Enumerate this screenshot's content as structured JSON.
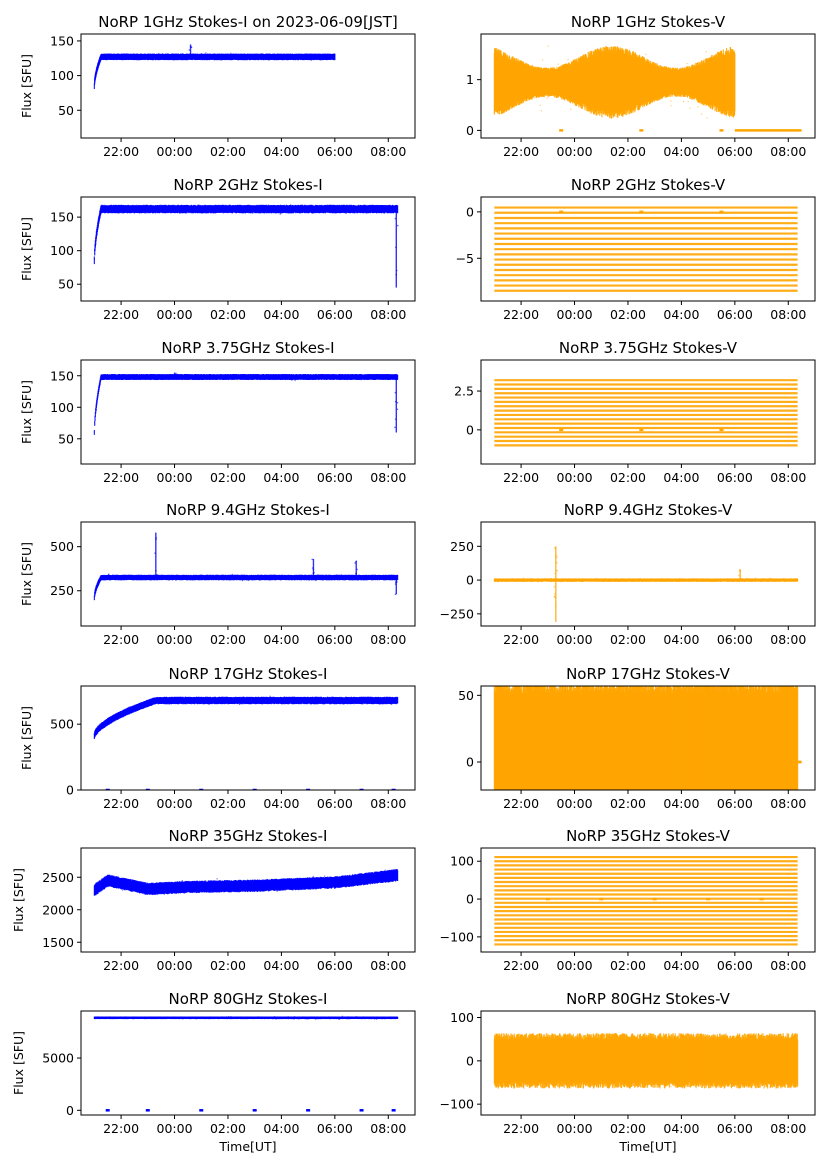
{
  "figure": {
    "type": "multi-panel-scatter",
    "xlabel": "Time[UT]"
  },
  "colors": {
    "stokes_i": "#0000ff",
    "stokes_v": "#ffa500",
    "axis": "#000000",
    "background": "#ffffff"
  },
  "chart_data": [
    {
      "type": "scatter",
      "title": "NoRP 1GHz Stokes-I on 2023-06-09[JST]",
      "xlabel": "",
      "ylabel": "Flux [SFU]",
      "xticks": [
        "22:00",
        "00:00",
        "02:00",
        "04:00",
        "06:00",
        "08:00"
      ],
      "xlim_hours": [
        20.5,
        33.0
      ],
      "yticks": [
        50,
        100,
        150
      ],
      "ylim": [
        10,
        160
      ],
      "series": {
        "name": "Stokes-I",
        "color": "#0000ff",
        "start_hour": 21.0,
        "end_hour": 30.0,
        "level": 127,
        "rise_from": 85,
        "noise": 3,
        "spikes": [
          {
            "hour": 24.6,
            "value": 145
          }
        ],
        "dropouts": []
      }
    },
    {
      "type": "scatter",
      "title": "NoRP 1GHz Stokes-V",
      "xlabel": "",
      "ylabel": "",
      "xticks": [
        "22:00",
        "00:00",
        "02:00",
        "04:00",
        "06:00",
        "08:00"
      ],
      "xlim_hours": [
        20.5,
        33.0
      ],
      "yticks": [
        0,
        1
      ],
      "ylim": [
        -0.15,
        1.9
      ],
      "series": {
        "name": "Stokes-V",
        "color": "#ffa500",
        "start_hour": 21.0,
        "end_hour": 30.0,
        "level": 0.95,
        "noise": 0.45,
        "tail": {
          "start_hour": 30.0,
          "end_hour": 32.5,
          "value": 0.0
        },
        "dropouts": [
          {
            "hour": 23.5,
            "value": 0.0
          },
          {
            "hour": 26.5,
            "value": 0.0
          },
          {
            "hour": 29.5,
            "value": 0.0
          }
        ]
      }
    },
    {
      "type": "scatter",
      "title": "NoRP 2GHz Stokes-I",
      "xlabel": "",
      "ylabel": "Flux [SFU]",
      "xticks": [
        "22:00",
        "00:00",
        "02:00",
        "04:00",
        "06:00",
        "08:00"
      ],
      "xlim_hours": [
        20.5,
        33.0
      ],
      "yticks": [
        50,
        100,
        150
      ],
      "ylim": [
        25,
        180
      ],
      "series": {
        "name": "Stokes-I",
        "color": "#0000ff",
        "start_hour": 21.0,
        "end_hour": 32.35,
        "level": 162,
        "rise_from": 85,
        "noise": 4,
        "spikes": [
          {
            "hour": 32.3,
            "value": 45
          }
        ],
        "dropouts": []
      }
    },
    {
      "type": "scatter",
      "title": "NoRP 2GHz Stokes-V",
      "xlabel": "",
      "ylabel": "",
      "xticks": [
        "22:00",
        "00:00",
        "02:00",
        "04:00",
        "06:00",
        "08:00"
      ],
      "xlim_hours": [
        20.5,
        33.0
      ],
      "yticks": [
        -5,
        0
      ],
      "ylim": [
        -9.6,
        1.6
      ],
      "series": {
        "name": "Stokes-V",
        "color": "#ffa500",
        "start_hour": 21.0,
        "end_hour": 32.35,
        "quantized_min": -8.5,
        "quantized_max": 0.5,
        "quantum": 0.56,
        "dropouts": [
          {
            "hour": 23.5,
            "value": 0.0
          },
          {
            "hour": 26.5,
            "value": 0.0
          },
          {
            "hour": 29.5,
            "value": 0.0
          }
        ]
      }
    },
    {
      "type": "scatter",
      "title": "NoRP 3.75GHz Stokes-I",
      "xlabel": "",
      "ylabel": "Flux [SFU]",
      "xticks": [
        "22:00",
        "00:00",
        "02:00",
        "04:00",
        "06:00",
        "08:00"
      ],
      "xlim_hours": [
        20.5,
        33.0
      ],
      "yticks": [
        50,
        100,
        150
      ],
      "ylim": [
        10,
        175
      ],
      "series": {
        "name": "Stokes-I",
        "color": "#0000ff",
        "start_hour": 21.0,
        "end_hour": 32.35,
        "level": 148,
        "rise_from": 60,
        "noise": 3,
        "spikes": [
          {
            "hour": 24.0,
            "value": 155
          },
          {
            "hour": 32.3,
            "value": 60
          }
        ],
        "dropouts": []
      }
    },
    {
      "type": "scatter",
      "title": "NoRP 3.75GHz Stokes-V",
      "xlabel": "",
      "ylabel": "",
      "xticks": [
        "22:00",
        "00:00",
        "02:00",
        "04:00",
        "06:00",
        "08:00"
      ],
      "xlim_hours": [
        20.5,
        33.0
      ],
      "yticks": [
        0.0,
        2.5
      ],
      "ylim": [
        -2.2,
        4.5
      ],
      "series": {
        "name": "Stokes-V",
        "color": "#ffa500",
        "start_hour": 21.0,
        "end_hour": 32.35,
        "quantized_min": -1.0,
        "quantized_max": 3.3,
        "quantum": 0.28,
        "dropouts": [
          {
            "hour": 23.5,
            "value": 0.0
          },
          {
            "hour": 26.5,
            "value": 0.0
          },
          {
            "hour": 29.5,
            "value": 0.0
          }
        ]
      }
    },
    {
      "type": "scatter",
      "title": "NoRP 9.4GHz Stokes-I",
      "xlabel": "",
      "ylabel": "Flux [SFU]",
      "xticks": [
        "22:00",
        "00:00",
        "02:00",
        "04:00",
        "06:00",
        "08:00"
      ],
      "xlim_hours": [
        20.5,
        33.0
      ],
      "yticks": [
        250,
        500
      ],
      "ylim": [
        50,
        640
      ],
      "series": {
        "name": "Stokes-I",
        "color": "#0000ff",
        "start_hour": 21.0,
        "end_hour": 32.35,
        "level": 325,
        "rise_from": 210,
        "noise": 10,
        "spikes": [
          {
            "hour": 23.3,
            "value": 580
          },
          {
            "hour": 29.2,
            "value": 430
          },
          {
            "hour": 30.8,
            "value": 420
          },
          {
            "hour": 32.3,
            "value": 230
          }
        ],
        "dropouts": []
      }
    },
    {
      "type": "scatter",
      "title": "NoRP 9.4GHz Stokes-V",
      "xlabel": "",
      "ylabel": "",
      "xticks": [
        "22:00",
        "00:00",
        "02:00",
        "04:00",
        "06:00",
        "08:00"
      ],
      "xlim_hours": [
        20.5,
        33.0
      ],
      "yticks": [
        -250,
        0,
        250
      ],
      "ylim": [
        -340,
        430
      ],
      "series": {
        "name": "Stokes-V",
        "color": "#ffa500",
        "start_hour": 21.0,
        "end_hour": 32.35,
        "level": 0,
        "noise": 8,
        "spikes": [
          {
            "hour": 23.3,
            "value": -310
          },
          {
            "hour": 23.3,
            "value": 250
          },
          {
            "hour": 30.2,
            "value": 80
          }
        ],
        "dropouts": []
      }
    },
    {
      "type": "scatter",
      "title": "NoRP 17GHz Stokes-I",
      "xlabel": "",
      "ylabel": "Flux [SFU]",
      "xticks": [
        "22:00",
        "00:00",
        "02:00",
        "04:00",
        "06:00",
        "08:00"
      ],
      "xlim_hours": [
        20.5,
        33.0
      ],
      "yticks": [
        0,
        500
      ],
      "ylim": [
        0,
        790
      ],
      "series": {
        "name": "Stokes-I",
        "color": "#0000ff",
        "start_hour": 21.0,
        "end_hour": 32.35,
        "level": 680,
        "rise_from": 410,
        "rise_until": 23.3,
        "noise": 18,
        "spikes": [],
        "dropouts": [
          {
            "hour": 21.5,
            "value": 0
          },
          {
            "hour": 23.0,
            "value": 0
          },
          {
            "hour": 25.0,
            "value": 0
          },
          {
            "hour": 27.0,
            "value": 0
          },
          {
            "hour": 29.0,
            "value": 0
          },
          {
            "hour": 31.0,
            "value": 0
          },
          {
            "hour": 32.2,
            "value": 0
          }
        ]
      }
    },
    {
      "type": "scatter",
      "title": "NoRP 17GHz Stokes-V",
      "xlabel": "",
      "ylabel": "",
      "xticks": [
        "22:00",
        "00:00",
        "02:00",
        "04:00",
        "06:00",
        "08:00"
      ],
      "xlim_hours": [
        20.5,
        33.0
      ],
      "yticks": [
        0,
        50
      ],
      "ylim": [
        -21,
        57
      ],
      "series": {
        "name": "Stokes-V",
        "color": "#ffa500",
        "start_hour": 21.0,
        "end_hour": 32.35,
        "level": 15,
        "noise": 30,
        "tail": {
          "start_hour": 32.35,
          "end_hour": 32.5,
          "value": 0.0
        },
        "dropouts": [
          {
            "hour": 21.1,
            "value": 0.0
          },
          {
            "hour": 32.4,
            "value": 0.0
          }
        ]
      }
    },
    {
      "type": "scatter",
      "title": "NoRP 35GHz Stokes-I",
      "xlabel": "",
      "ylabel": "Flux [SFU]",
      "xticks": [
        "22:00",
        "00:00",
        "02:00",
        "04:00",
        "06:00",
        "08:00"
      ],
      "xlim_hours": [
        20.5,
        33.0
      ],
      "yticks": [
        1500,
        2000,
        2500
      ],
      "ylim": [
        1350,
        2950
      ],
      "series": {
        "name": "Stokes-I",
        "color": "#0000ff",
        "start_hour": 21.0,
        "end_hour": 32.35,
        "profile": [
          [
            21.0,
            2300
          ],
          [
            21.5,
            2450
          ],
          [
            23.0,
            2320
          ],
          [
            24.5,
            2350
          ],
          [
            27.0,
            2370
          ],
          [
            30.0,
            2420
          ],
          [
            32.3,
            2530
          ]
        ],
        "noise": 60,
        "spikes": [],
        "dropouts": []
      }
    },
    {
      "type": "scatter",
      "title": "NoRP 35GHz Stokes-V",
      "xlabel": "",
      "ylabel": "",
      "xticks": [
        "22:00",
        "00:00",
        "02:00",
        "04:00",
        "06:00",
        "08:00"
      ],
      "xlim_hours": [
        20.5,
        33.0
      ],
      "yticks": [
        -100,
        0,
        100
      ],
      "ylim": [
        -140,
        135
      ],
      "series": {
        "name": "Stokes-V",
        "color": "#ffa500",
        "start_hour": 21.0,
        "end_hour": 32.35,
        "quantized_min": -120,
        "quantized_max": 120,
        "quantum": 11,
        "dropouts": [
          {
            "hour": 23.0,
            "value": 0.0
          },
          {
            "hour": 25.0,
            "value": 0.0
          },
          {
            "hour": 27.0,
            "value": 0.0
          },
          {
            "hour": 29.0,
            "value": 0.0
          },
          {
            "hour": 31.0,
            "value": 0.0
          }
        ]
      }
    },
    {
      "type": "scatter",
      "title": "NoRP 80GHz Stokes-I",
      "xlabel": "Time[UT]",
      "ylabel": "Flux [SFU]",
      "xticks": [
        "22:00",
        "00:00",
        "02:00",
        "04:00",
        "06:00",
        "08:00"
      ],
      "xlim_hours": [
        20.5,
        33.0
      ],
      "yticks": [
        0,
        5000
      ],
      "ylim": [
        -450,
        9500
      ],
      "series": {
        "name": "Stokes-I",
        "color": "#0000ff",
        "start_hour": 21.0,
        "end_hour": 32.35,
        "level": 8850,
        "noise": 80,
        "spikes": [],
        "dropouts": [
          {
            "hour": 21.5,
            "value": 0
          },
          {
            "hour": 23.0,
            "value": 0
          },
          {
            "hour": 25.0,
            "value": 0
          },
          {
            "hour": 27.0,
            "value": 0
          },
          {
            "hour": 29.0,
            "value": 0
          },
          {
            "hour": 31.0,
            "value": 0
          },
          {
            "hour": 32.2,
            "value": 0
          }
        ]
      }
    },
    {
      "type": "scatter",
      "title": "NoRP 80GHz Stokes-V",
      "xlabel": "Time[UT]",
      "ylabel": "",
      "xticks": [
        "22:00",
        "00:00",
        "02:00",
        "04:00",
        "06:00",
        "08:00"
      ],
      "xlim_hours": [
        20.5,
        33.0
      ],
      "yticks": [
        -100,
        0,
        100
      ],
      "ylim": [
        -125,
        115
      ],
      "series": {
        "name": "Stokes-V",
        "color": "#ffa500",
        "start_hour": 21.0,
        "end_hour": 32.35,
        "level": 0,
        "noise": 40,
        "dropouts": []
      }
    }
  ]
}
